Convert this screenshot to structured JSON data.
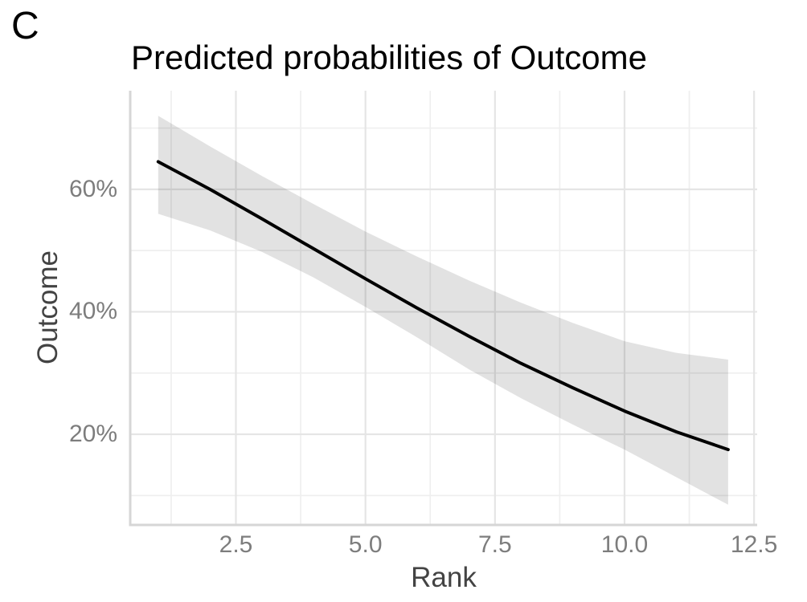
{
  "panel_label": "C",
  "chart_data": {
    "type": "line",
    "title": "Predicted probabilities of Outcome",
    "xlabel": "Rank",
    "ylabel": "Outcome",
    "x": [
      1,
      2,
      3,
      4,
      5,
      6,
      7,
      8,
      9,
      10,
      11,
      12
    ],
    "series": [
      {
        "name": "predicted_probability_pct",
        "values": [
          64.5,
          60.0,
          55.2,
          50.3,
          45.4,
          40.6,
          36.0,
          31.6,
          27.6,
          23.8,
          20.4,
          17.5
        ]
      },
      {
        "name": "ci_upper_pct",
        "values": [
          72.0,
          67.0,
          62.2,
          57.6,
          53.1,
          49.0,
          45.1,
          41.5,
          38.2,
          35.2,
          33.3,
          32.2
        ]
      },
      {
        "name": "ci_lower_pct",
        "values": [
          56.0,
          53.3,
          49.8,
          45.6,
          40.8,
          35.8,
          30.6,
          25.9,
          21.6,
          17.5,
          13.0,
          8.5
        ]
      }
    ],
    "x_ticks": [
      {
        "value": 2.5,
        "label": "2.5"
      },
      {
        "value": 5.0,
        "label": "5.0"
      },
      {
        "value": 7.5,
        "label": "7.5"
      },
      {
        "value": 10.0,
        "label": "10.0"
      },
      {
        "value": 12.5,
        "label": "12.5"
      }
    ],
    "y_ticks": [
      {
        "value": 20,
        "label": "20%"
      },
      {
        "value": 40,
        "label": "40%"
      },
      {
        "value": 60,
        "label": "60%"
      }
    ],
    "x_minor": [
      1.25,
      3.75,
      6.25,
      8.75,
      11.25
    ],
    "y_minor": [
      10,
      30,
      50,
      70
    ],
    "xlim": [
      0.46,
      12.56
    ],
    "ylim": [
      5.2,
      76.1
    ],
    "grid": true,
    "legend": "none",
    "colors": {
      "line": "#000000",
      "ribbon": "rgba(0,0,0,0.115)",
      "grid_major": "#e5e5e5",
      "grid_minor": "#efefef",
      "axis_line": "#d6d6d6",
      "tick_text": "#7d7d7d",
      "axis_title_text": "#434343",
      "title_text": "#000000",
      "background": "#ffffff"
    }
  }
}
